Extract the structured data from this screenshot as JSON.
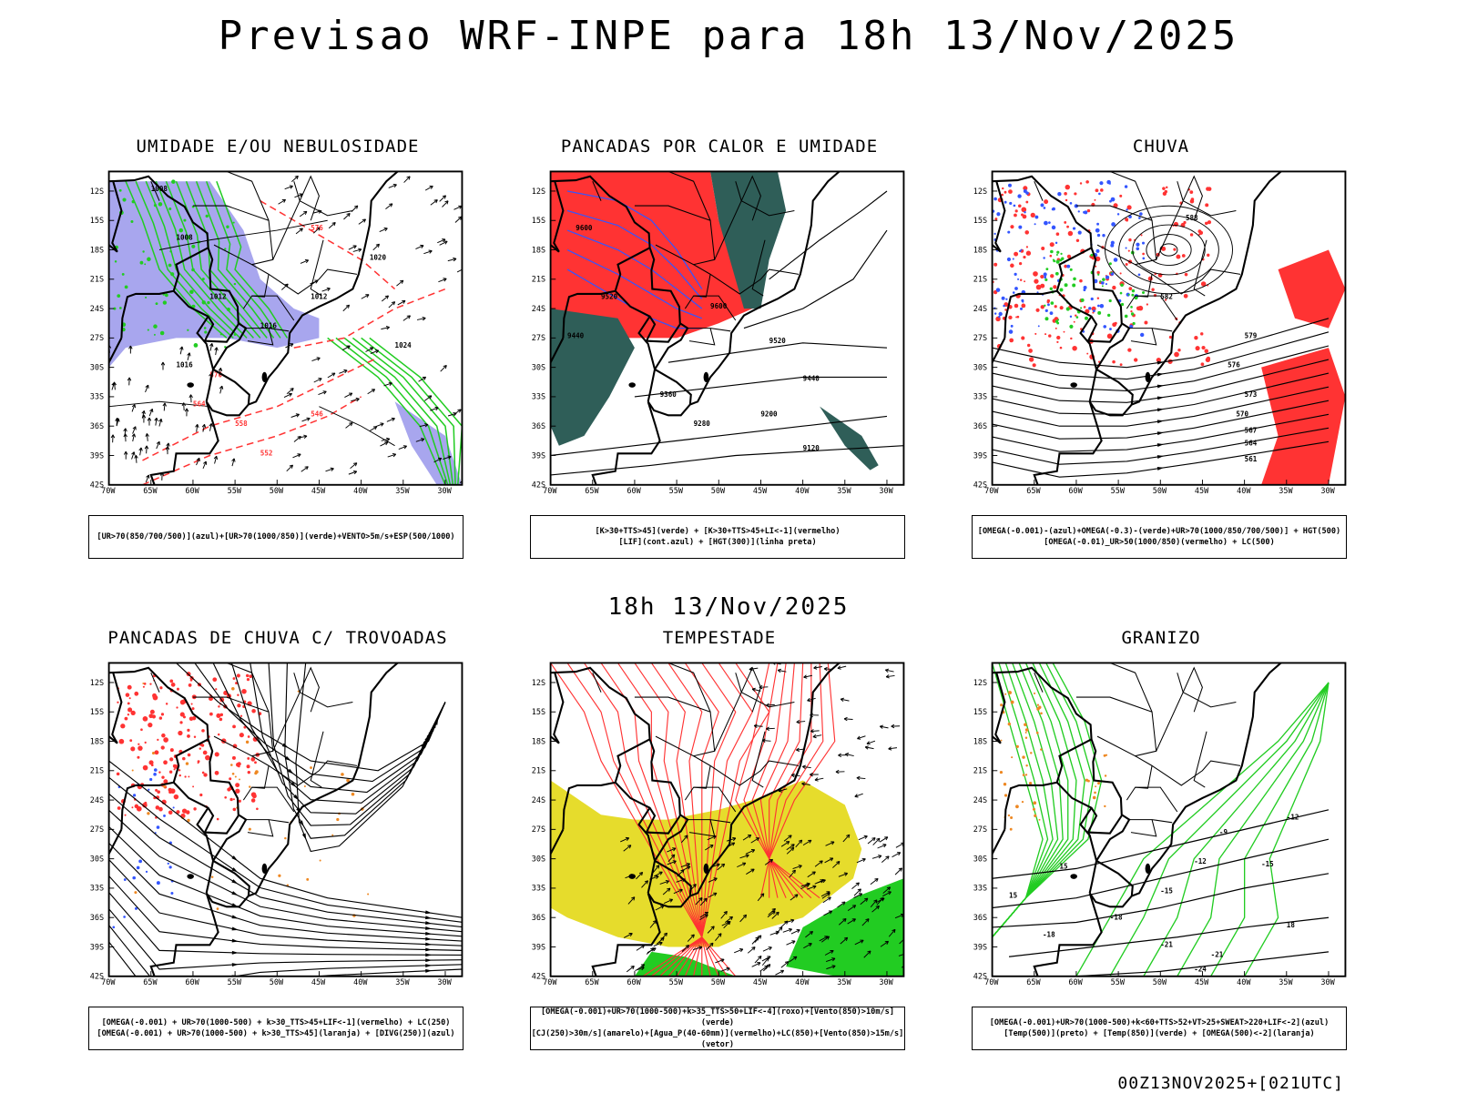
{
  "title": "Previsao WRF-INPE  para 18h 13/Nov/2025",
  "subtitle": "18h 13/Nov/2025",
  "footer": "00Z13NOV2025+[021UTC]",
  "axes": {
    "lat_labels": [
      "12S",
      "15S",
      "18S",
      "21S",
      "24S",
      "27S",
      "30S",
      "33S",
      "36S",
      "39S",
      "42S"
    ],
    "lon_labels": [
      "70W",
      "65W",
      "60W",
      "55W",
      "50W",
      "45W",
      "40W",
      "35W",
      "30W"
    ]
  },
  "colors": {
    "red": "#ff3333",
    "green": "#22cc22",
    "blue": "#3355ff",
    "lavender": "#a8a6ee",
    "teal": "#2f5e58",
    "yellow": "#e6dc2c",
    "orange": "#ee8822"
  },
  "panels": [
    {
      "title": "UMIDADE E/OU NEBULOSIDADE",
      "legend": [
        "[UR>70(850/700/500)](azul)+[UR>70(1000/850)](verde)+VENTO>5m/s+ESP(500/1000)"
      ],
      "contour_labels": [
        "1008",
        "1008",
        "1012",
        "1012",
        "1016",
        "1016",
        "1020",
        "1024",
        "576",
        "570",
        "564",
        "558",
        "552",
        "546"
      ]
    },
    {
      "title": "PANCADAS POR CALOR E UMIDADE",
      "legend": [
        "[K>30+TTS>45](verde) + [K>30+TTS>45+LI<-1](vermelho)",
        "[LIF](cont.azul) + [HGT(300)](linha preta)"
      ],
      "contour_labels": [
        "9600",
        "9520",
        "9520",
        "9440",
        "9360",
        "9280",
        "9200",
        "9120",
        "9600",
        "9440"
      ]
    },
    {
      "title": "CHUVA",
      "legend": [
        "[OMEGA(-0.001)-(azul)+OMEGA(-0.3)-(verde)+UR>70(1000/850/700/500)] + HGT(500)",
        "[OMEGA(-0.01)_UR>50(1000/850)(vermelho) + LC(500)"
      ],
      "contour_labels": [
        "588",
        "582",
        "579",
        "576",
        "573",
        "570",
        "567",
        "564",
        "561"
      ]
    },
    {
      "title": "PANCADAS DE CHUVA C/ TROVOADAS",
      "legend": [
        "[OMEGA(-0.001) + UR>70(1000-500) + k>30_TTS>45+LIF<-1](vermelho) + LC(250)",
        "[OMEGA(-0.001) + UR>70(1000-500) + k>30_TTS>45](laranja) + [DIVG(250)](azul)"
      ],
      "contour_labels": []
    },
    {
      "title": "TEMPESTADE",
      "legend": [
        "[OMEGA(-0.001)+UR>70(1000-500)+k>35_TTS>50+LIF<-4](roxo)+[Vento(850)>10m/s](verde)",
        "[CJ(250)>30m/s](amarelo)+[Agua_P(40-60mm)](vermelho)+LC(850)+[Vento(850)>15m/s](vetor)"
      ],
      "contour_labels": []
    },
    {
      "title": "GRANIZO",
      "legend": [
        "[OMEGA(-0.001)+UR>70(1000-500)+k<60+TTS>52+VT>25+SWEAT>220+LIF<-2](azul)",
        "[Temp(500)](preto) + [Temp(850)](verde) + [OMEGA(500)<-2](laranja)"
      ],
      "contour_labels": [
        "-9",
        "-12",
        "-12",
        "-15",
        "-15",
        "-18",
        "-21",
        "-21",
        "-24",
        "15",
        "15",
        "18",
        "-18"
      ]
    }
  ]
}
